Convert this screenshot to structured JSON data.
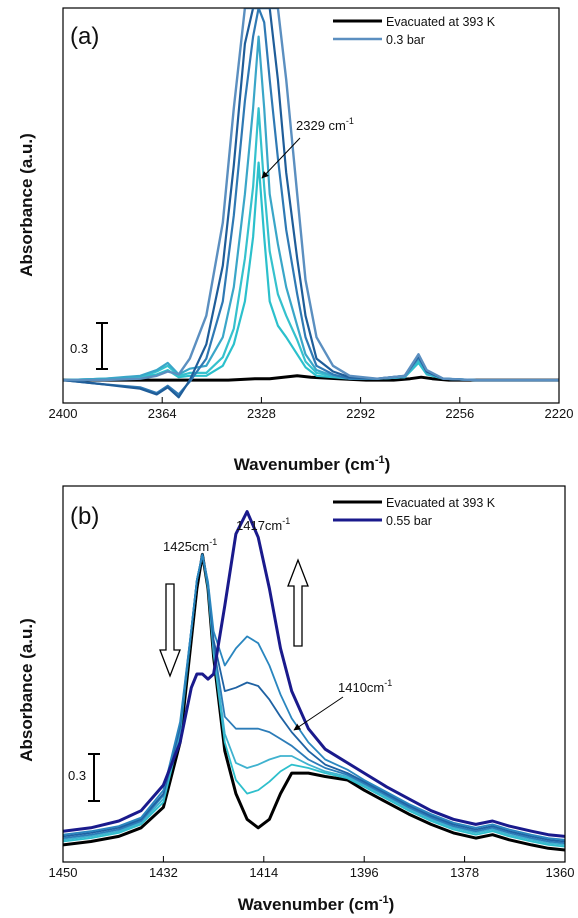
{
  "chart_data": [
    {
      "panel_label": "(a)",
      "type": "line",
      "xlabel": "Wavenumber (cm⁻¹)",
      "ylabel": "Absorbance (a.u.)",
      "xlim": [
        2400,
        2220
      ],
      "x_reversed": true,
      "ylim": [
        -0.16,
        2.6
      ],
      "xticks": [
        2400,
        2364,
        2328,
        2292,
        2256,
        2220
      ],
      "scale_bar": {
        "label": "0.3",
        "value": 0.3
      },
      "legend": [
        {
          "label": "Evacuated at 393 K",
          "color": "#000000"
        },
        {
          "label": "0.3 bar",
          "color": "#5b8fc0"
        }
      ],
      "legend_position": "top-right",
      "annotations": [
        {
          "text": "2329 cm⁻¹",
          "x": 2329
        }
      ],
      "series": [
        {
          "name": "Evacuated at 393 K",
          "color": "#000000",
          "width": 3.0,
          "x": [
            2400,
            2390,
            2380,
            2370,
            2360,
            2350,
            2340,
            2330,
            2325,
            2320,
            2315,
            2310,
            2300,
            2290,
            2280,
            2274,
            2270,
            2266,
            2260,
            2250,
            2240,
            2230,
            2220
          ],
          "y": [
            0,
            0,
            0,
            0,
            0,
            0,
            0,
            0.01,
            0.01,
            0.02,
            0.03,
            0.02,
            0.01,
            0,
            0,
            0.01,
            0.02,
            0.01,
            0,
            0,
            0,
            0,
            0
          ]
        },
        {
          "name": "",
          "color": "#2bc0cc",
          "width": 2.2,
          "x": [
            2400,
            2385,
            2372,
            2366,
            2362,
            2358,
            2354,
            2348,
            2342,
            2338,
            2334,
            2331,
            2329,
            2327,
            2325,
            2322,
            2319,
            2315,
            2312,
            2308,
            2302,
            2296,
            2286,
            2276,
            2271,
            2268,
            2262,
            2250,
            2240,
            2230,
            2220
          ],
          "y": [
            0,
            0.01,
            0.02,
            0.04,
            0.07,
            0.02,
            0.03,
            0.03,
            0.1,
            0.25,
            0.55,
            1.0,
            1.52,
            1.0,
            0.55,
            0.38,
            0.3,
            0.18,
            0.09,
            0.03,
            0.02,
            0.01,
            0.01,
            0.02,
            0.12,
            0.04,
            0.01,
            0,
            0,
            0,
            0
          ]
        },
        {
          "name": "",
          "color": "#35c1cd",
          "width": 2.2,
          "x": [
            2400,
            2385,
            2372,
            2366,
            2362,
            2358,
            2354,
            2348,
            2342,
            2338,
            2334,
            2331,
            2329,
            2327,
            2325,
            2322,
            2319,
            2315,
            2312,
            2308,
            2302,
            2296,
            2286,
            2276,
            2271,
            2268,
            2262,
            2250,
            2240,
            2230,
            2220
          ],
          "y": [
            0,
            0.01,
            0.02,
            0.06,
            0.1,
            0.03,
            0.05,
            0.05,
            0.16,
            0.36,
            0.85,
            1.35,
            1.9,
            1.35,
            0.9,
            0.6,
            0.45,
            0.28,
            0.13,
            0.05,
            0.03,
            0.01,
            0.01,
            0.02,
            0.14,
            0.05,
            0.01,
            0,
            0,
            0,
            0
          ]
        },
        {
          "name": "",
          "color": "#3aa6c8",
          "width": 2.2,
          "x": [
            2400,
            2385,
            2372,
            2366,
            2362,
            2358,
            2354,
            2348,
            2342,
            2338,
            2334,
            2331,
            2329,
            2327,
            2325,
            2322,
            2319,
            2315,
            2312,
            2308,
            2302,
            2296,
            2286,
            2276,
            2271,
            2268,
            2262,
            2250,
            2240,
            2230,
            2220
          ],
          "y": [
            0,
            0.01,
            0.03,
            0.07,
            0.12,
            0.04,
            0.08,
            0.1,
            0.3,
            0.65,
            1.3,
            1.9,
            2.4,
            1.9,
            1.3,
            0.95,
            0.65,
            0.38,
            0.18,
            0.07,
            0.03,
            0.01,
            0.01,
            0.02,
            0.15,
            0.05,
            0.01,
            0,
            0,
            0,
            0
          ]
        },
        {
          "name": "",
          "color": "#2f79b4",
          "width": 2.2,
          "x": [
            2400,
            2385,
            2372,
            2366,
            2362,
            2358,
            2354,
            2348,
            2342,
            2338,
            2334,
            2331,
            2329,
            2327,
            2325,
            2322,
            2319,
            2315,
            2312,
            2308,
            2302,
            2296,
            2286,
            2276,
            2271,
            2268,
            2262,
            2250,
            2240,
            2230,
            2220
          ],
          "y": [
            0,
            -0.03,
            -0.05,
            -0.09,
            -0.04,
            -0.1,
            -0.01,
            0.15,
            0.55,
            1.15,
            1.95,
            2.4,
            2.6,
            2.5,
            2.1,
            1.55,
            1.05,
            0.6,
            0.3,
            0.1,
            0.04,
            0.01,
            0.01,
            0.03,
            0.16,
            0.06,
            0.01,
            0,
            0,
            0,
            0
          ]
        },
        {
          "name": "",
          "color": "#1f5d99",
          "width": 2.2,
          "x": [
            2400,
            2385,
            2372,
            2366,
            2362,
            2358,
            2354,
            2348,
            2342,
            2338,
            2334,
            2331,
            2329,
            2327,
            2325,
            2322,
            2319,
            2315,
            2312,
            2308,
            2302,
            2296,
            2286,
            2276,
            2271,
            2268,
            2262,
            2250,
            2240,
            2230,
            2220
          ],
          "y": [
            0,
            -0.03,
            -0.06,
            -0.1,
            -0.05,
            -0.12,
            0,
            0.25,
            0.8,
            1.5,
            2.35,
            2.6,
            2.6,
            2.6,
            2.6,
            2.1,
            1.45,
            0.85,
            0.45,
            0.15,
            0.06,
            0.02,
            0.01,
            0.03,
            0.17,
            0.06,
            0.01,
            0,
            0,
            0,
            0
          ]
        },
        {
          "name": "0.3 bar",
          "color": "#5b8fc0",
          "width": 2.4,
          "x": [
            2400,
            2385,
            2372,
            2366,
            2362,
            2358,
            2354,
            2348,
            2342,
            2338,
            2334,
            2331,
            2329,
            2327,
            2325,
            2322,
            2319,
            2315,
            2312,
            2308,
            2302,
            2296,
            2286,
            2276,
            2271,
            2268,
            2262,
            2250,
            2240,
            2230,
            2220
          ],
          "y": [
            0,
            0,
            0.01,
            0.03,
            0.06,
            0.04,
            0.15,
            0.45,
            1.1,
            1.9,
            2.6,
            2.6,
            2.6,
            2.6,
            2.6,
            2.6,
            2.1,
            1.3,
            0.7,
            0.3,
            0.1,
            0.03,
            0.01,
            0.03,
            0.18,
            0.07,
            0.01,
            0,
            0,
            0,
            0
          ]
        }
      ]
    },
    {
      "panel_label": "(b)",
      "type": "line",
      "xlabel": "Wavenumber (cm⁻¹)",
      "ylabel": "Absorbance (a.u.)",
      "xlim": [
        1450,
        1360
      ],
      "x_reversed": true,
      "ylim": [
        -0.1,
        2.1
      ],
      "xticks": [
        1450,
        1432,
        1414,
        1396,
        1378,
        1360
      ],
      "scale_bar": {
        "label": "0.3",
        "value": 0.3
      },
      "legend": [
        {
          "label": "Evacuated at 393 K",
          "color": "#000000"
        },
        {
          "label": "0.55 bar",
          "color": "#1a1a8c"
        }
      ],
      "legend_position": "top-right",
      "annotations": [
        {
          "text": "1425cm⁻¹",
          "x": 1425
        },
        {
          "text": "1417cm⁻¹",
          "x": 1417
        },
        {
          "text": "1410cm⁻¹",
          "x": 1410
        }
      ],
      "arrows": [
        {
          "direction": "down",
          "x": 1427
        },
        {
          "direction": "up",
          "x": 1411
        }
      ],
      "series": [
        {
          "name": "Evacuated at 393 K",
          "color": "#000000",
          "width": 3.0,
          "x": [
            1450,
            1445,
            1440,
            1436,
            1432,
            1429,
            1427,
            1426,
            1425,
            1424,
            1423,
            1421,
            1419,
            1417,
            1415,
            1413,
            1411,
            1409,
            1406,
            1403,
            1399,
            1396,
            1392,
            1388,
            1384,
            1380,
            1376,
            1373,
            1370,
            1366,
            1363,
            1360
          ],
          "y": [
            0,
            0.02,
            0.05,
            0.1,
            0.22,
            0.6,
            1.2,
            1.5,
            1.7,
            1.5,
            1.1,
            0.55,
            0.3,
            0.15,
            0.1,
            0.15,
            0.3,
            0.42,
            0.42,
            0.4,
            0.38,
            0.32,
            0.25,
            0.18,
            0.12,
            0.07,
            0.04,
            0.06,
            0.03,
            0,
            -0.02,
            -0.03
          ]
        },
        {
          "name": "",
          "color": "#2ebfcc",
          "width": 1.8,
          "x": [
            1450,
            1445,
            1440,
            1436,
            1432,
            1429,
            1427,
            1426,
            1425,
            1424,
            1423,
            1421,
            1419,
            1417,
            1415,
            1413,
            1411,
            1409,
            1406,
            1403,
            1399,
            1396,
            1392,
            1388,
            1384,
            1380,
            1376,
            1373,
            1370,
            1366,
            1363,
            1360
          ],
          "y": [
            0.02,
            0.04,
            0.07,
            0.12,
            0.25,
            0.65,
            1.25,
            1.55,
            1.7,
            1.5,
            1.12,
            0.6,
            0.38,
            0.3,
            0.32,
            0.37,
            0.43,
            0.47,
            0.45,
            0.42,
            0.39,
            0.34,
            0.27,
            0.2,
            0.14,
            0.09,
            0.06,
            0.08,
            0.05,
            0.02,
            0,
            -0.01
          ]
        },
        {
          "name": "",
          "color": "#3fb2cf",
          "width": 1.8,
          "x": [
            1450,
            1445,
            1440,
            1436,
            1432,
            1429,
            1427,
            1426,
            1425,
            1424,
            1423,
            1421,
            1419,
            1417,
            1415,
            1413,
            1411,
            1409,
            1406,
            1403,
            1399,
            1396,
            1392,
            1388,
            1384,
            1380,
            1376,
            1373,
            1370,
            1366,
            1363,
            1360
          ],
          "y": [
            0.03,
            0.05,
            0.08,
            0.13,
            0.27,
            0.67,
            1.26,
            1.55,
            1.7,
            1.52,
            1.14,
            0.65,
            0.48,
            0.45,
            0.47,
            0.5,
            0.52,
            0.52,
            0.47,
            0.43,
            0.4,
            0.35,
            0.28,
            0.21,
            0.15,
            0.1,
            0.07,
            0.09,
            0.06,
            0.03,
            0.01,
            0
          ]
        },
        {
          "name": "",
          "color": "#2c7cb8",
          "width": 1.8,
          "x": [
            1450,
            1445,
            1440,
            1436,
            1432,
            1429,
            1427,
            1426,
            1425,
            1424,
            1423,
            1421,
            1419,
            1417,
            1415,
            1413,
            1411,
            1409,
            1406,
            1403,
            1399,
            1396,
            1392,
            1388,
            1384,
            1380,
            1376,
            1373,
            1370,
            1366,
            1363,
            1360
          ],
          "y": [
            0.04,
            0.06,
            0.09,
            0.14,
            0.29,
            0.68,
            1.26,
            1.55,
            1.7,
            1.52,
            1.17,
            0.75,
            0.68,
            0.68,
            0.68,
            0.66,
            0.62,
            0.58,
            0.5,
            0.45,
            0.41,
            0.36,
            0.29,
            0.22,
            0.16,
            0.11,
            0.08,
            0.1,
            0.07,
            0.04,
            0.02,
            0.01
          ]
        },
        {
          "name": "",
          "color": "#1f62a3",
          "width": 1.8,
          "x": [
            1450,
            1445,
            1440,
            1436,
            1432,
            1429,
            1427,
            1426,
            1425,
            1424,
            1423,
            1421,
            1419,
            1417,
            1415,
            1413,
            1411,
            1409,
            1406,
            1403,
            1399,
            1396,
            1392,
            1388,
            1384,
            1380,
            1376,
            1373,
            1370,
            1366,
            1363,
            1360
          ],
          "y": [
            0.05,
            0.07,
            0.1,
            0.15,
            0.3,
            0.7,
            1.26,
            1.55,
            1.7,
            1.53,
            1.2,
            0.9,
            0.92,
            0.95,
            0.93,
            0.85,
            0.75,
            0.66,
            0.55,
            0.47,
            0.42,
            0.37,
            0.3,
            0.23,
            0.17,
            0.12,
            0.09,
            0.11,
            0.08,
            0.05,
            0.03,
            0.02
          ]
        },
        {
          "name": "",
          "color": "#2a86bf",
          "width": 1.8,
          "x": [
            1450,
            1445,
            1440,
            1436,
            1432,
            1429,
            1427,
            1426,
            1425,
            1424,
            1423,
            1421,
            1419,
            1417,
            1415,
            1413,
            1411,
            1409,
            1406,
            1403,
            1399,
            1396,
            1392,
            1388,
            1384,
            1380,
            1376,
            1373,
            1370,
            1366,
            1363,
            1360
          ],
          "y": [
            0.06,
            0.08,
            0.11,
            0.16,
            0.32,
            0.72,
            1.26,
            1.55,
            1.7,
            1.54,
            1.25,
            1.05,
            1.15,
            1.22,
            1.18,
            1.05,
            0.88,
            0.74,
            0.6,
            0.5,
            0.44,
            0.38,
            0.31,
            0.24,
            0.18,
            0.13,
            0.1,
            0.12,
            0.09,
            0.06,
            0.04,
            0.03
          ]
        },
        {
          "name": "0.55 bar",
          "color": "#1a1a8c",
          "width": 3.0,
          "x": [
            1450,
            1445,
            1440,
            1436,
            1432,
            1429,
            1427,
            1426,
            1425,
            1424,
            1423,
            1421,
            1419,
            1417,
            1415,
            1413,
            1411,
            1409,
            1406,
            1403,
            1399,
            1396,
            1392,
            1388,
            1384,
            1380,
            1376,
            1373,
            1370,
            1366,
            1363,
            1360
          ],
          "y": [
            0.08,
            0.1,
            0.14,
            0.2,
            0.35,
            0.6,
            0.92,
            1.0,
            1.0,
            0.97,
            1.0,
            1.4,
            1.82,
            1.95,
            1.8,
            1.5,
            1.15,
            0.9,
            0.68,
            0.56,
            0.48,
            0.42,
            0.34,
            0.27,
            0.2,
            0.15,
            0.12,
            0.14,
            0.11,
            0.08,
            0.06,
            0.05
          ]
        }
      ]
    }
  ]
}
